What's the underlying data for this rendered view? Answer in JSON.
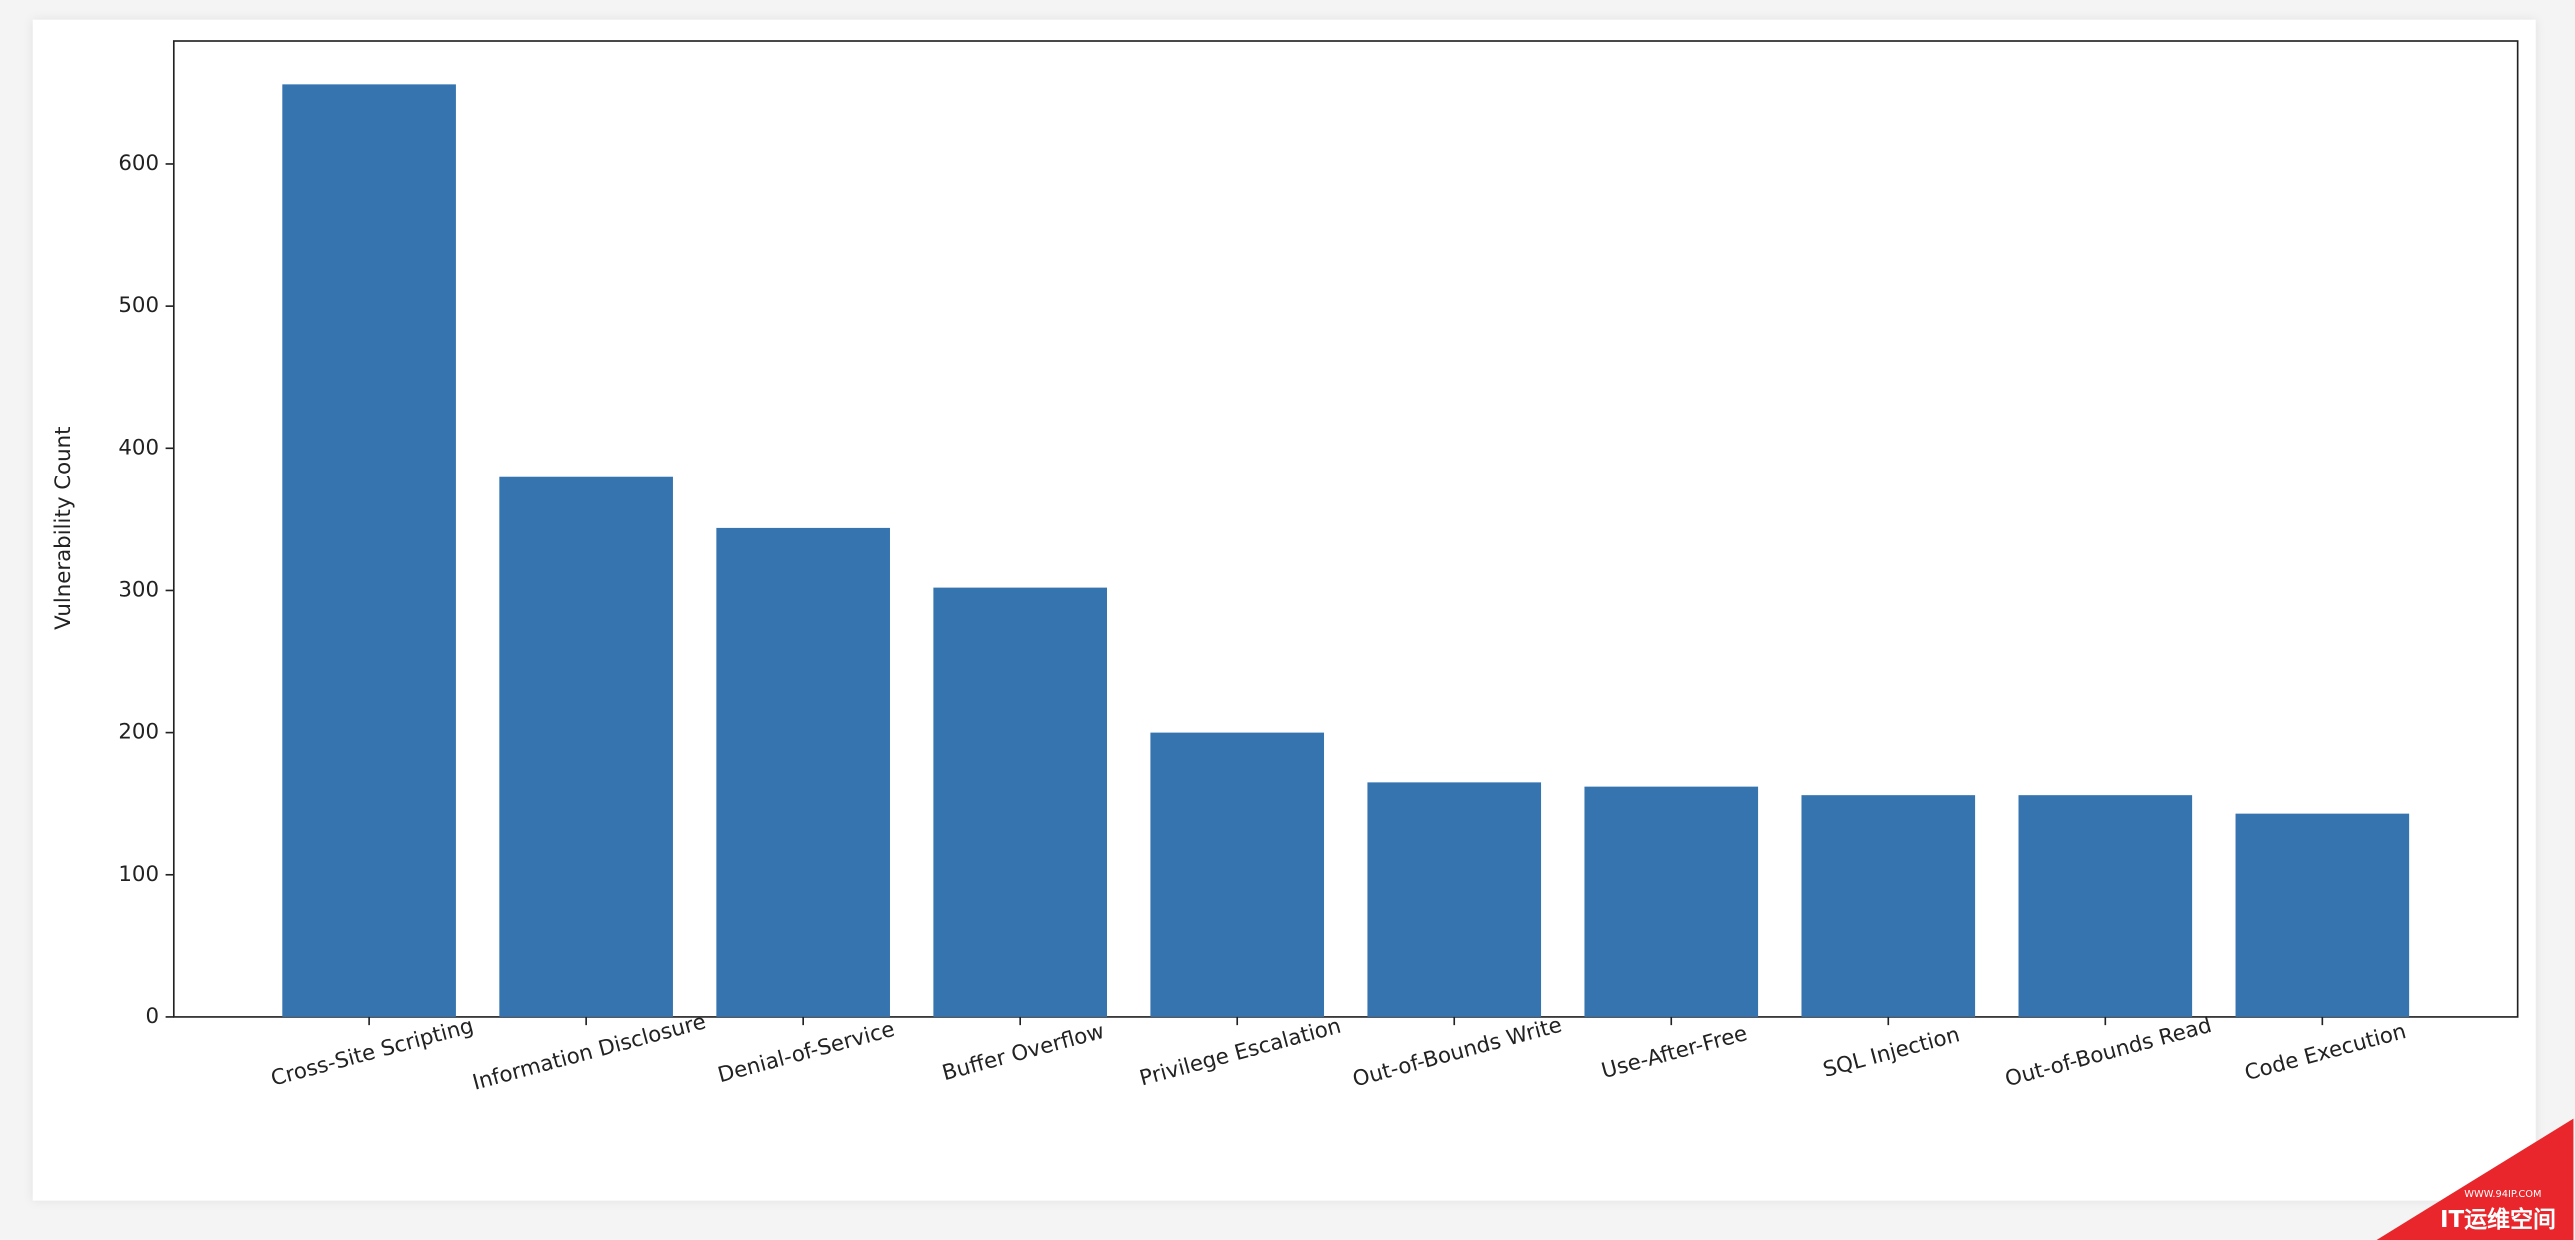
{
  "chart_data": {
    "type": "bar",
    "ylabel": "Vulnerability Count",
    "categories": [
      "Cross-Site Scripting",
      "Information Disclosure",
      "Denial-of-Service",
      "Buffer Overflow",
      "Privilege Escalation",
      "Out-of-Bounds Write",
      "Use-After-Free",
      "SQL Injection",
      "Out-of-Bounds Read",
      "Code Execution"
    ],
    "values": [
      656,
      380,
      344,
      302,
      200,
      165,
      162,
      156,
      156,
      143
    ],
    "color": "#3674b0",
    "ylim": [
      0,
      686.5
    ],
    "yticks": [
      0,
      100,
      200,
      300,
      400,
      500,
      600
    ],
    "grid": false
  },
  "watermark": {
    "site": "WWW.94IP.COM",
    "name": "IT运维空间"
  }
}
